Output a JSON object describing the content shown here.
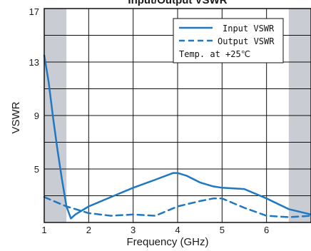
{
  "chart_data": {
    "type": "line",
    "title": "Input/Output VSWR",
    "xlabel": "Frequency (GHz)",
    "ylabel": "VSWR",
    "xlim": [
      1,
      7
    ],
    "ylim": [
      1,
      17
    ],
    "x_ticks": [
      "1",
      "2",
      "3",
      "4",
      "5",
      "6"
    ],
    "y_ticks": [
      "5",
      "9",
      "13",
      "17"
    ],
    "grid": true,
    "legend_position": "top-right",
    "annotation": "Temp. at +25℃",
    "shaded_x_ranges": [
      [
        1.0,
        1.5
      ],
      [
        6.5,
        7.0
      ]
    ],
    "shade_color": "#c9ccd3",
    "series": [
      {
        "name": "Input VSWR",
        "style": "solid",
        "color": "#1f78c1",
        "x": [
          1.0,
          1.1,
          1.2,
          1.3,
          1.4,
          1.5,
          1.6,
          1.7,
          2.0,
          2.5,
          3.0,
          3.5,
          3.9,
          4.0,
          4.2,
          4.5,
          4.8,
          5.0,
          5.5,
          6.0,
          6.5,
          7.0
        ],
        "y": [
          13.5,
          11.5,
          8.8,
          6.4,
          4.2,
          2.2,
          1.3,
          1.6,
          2.2,
          2.9,
          3.6,
          4.2,
          4.7,
          4.7,
          4.5,
          4.0,
          3.7,
          3.6,
          3.5,
          2.8,
          2.0,
          1.6
        ]
      },
      {
        "name": "Output VSWR",
        "style": "dashed",
        "color": "#1f78c1",
        "x": [
          1.0,
          1.5,
          2.0,
          2.5,
          3.0,
          3.5,
          4.0,
          4.5,
          4.8,
          5.0,
          5.5,
          6.0,
          6.5,
          7.0
        ],
        "y": [
          2.9,
          2.2,
          1.7,
          1.5,
          1.6,
          1.5,
          2.2,
          2.6,
          2.8,
          2.8,
          2.1,
          1.5,
          1.4,
          1.5
        ]
      }
    ]
  }
}
